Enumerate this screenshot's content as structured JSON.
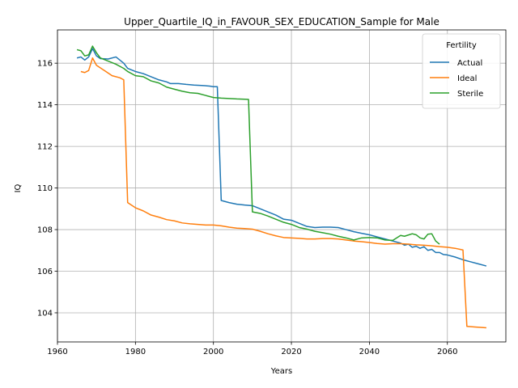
{
  "chart_data": {
    "type": "line",
    "title": "Upper_Quartile_IQ_in_FAVOUR_SEX_EDUCATION_Sample for Male",
    "xlabel": "Years",
    "ylabel": "IQ",
    "xlim": [
      1960,
      2075
    ],
    "ylim": [
      102.6,
      117.6
    ],
    "xticks": [
      1960,
      1980,
      2000,
      2020,
      2040,
      2060
    ],
    "yticks": [
      104,
      106,
      108,
      110,
      112,
      114,
      116
    ],
    "grid": true,
    "legend": {
      "title": "Fertility",
      "position": "top-right"
    },
    "series": [
      {
        "name": "Actual",
        "color": "#1f77b4",
        "points": [
          [
            1965,
            116.25
          ],
          [
            1966,
            116.3
          ],
          [
            1967,
            116.15
          ],
          [
            1968,
            116.3
          ],
          [
            1969,
            116.7
          ],
          [
            1970,
            116.35
          ],
          [
            1971,
            116.22
          ],
          [
            1973,
            116.2
          ],
          [
            1975,
            116.3
          ],
          [
            1977,
            116.0
          ],
          [
            1978,
            115.75
          ],
          [
            1980,
            115.6
          ],
          [
            1982,
            115.5
          ],
          [
            1984,
            115.35
          ],
          [
            1986,
            115.2
          ],
          [
            1988,
            115.1
          ],
          [
            1989,
            115.02
          ],
          [
            1991,
            115.02
          ],
          [
            1993,
            114.98
          ],
          [
            1995,
            114.95
          ],
          [
            1997,
            114.93
          ],
          [
            1999,
            114.9
          ],
          [
            2000,
            114.87
          ],
          [
            2001,
            114.87
          ],
          [
            2002,
            109.4
          ],
          [
            2004,
            109.3
          ],
          [
            2006,
            109.22
          ],
          [
            2008,
            109.18
          ],
          [
            2010,
            109.15
          ],
          [
            2012,
            109.0
          ],
          [
            2014,
            108.85
          ],
          [
            2016,
            108.7
          ],
          [
            2018,
            108.5
          ],
          [
            2020,
            108.45
          ],
          [
            2022,
            108.3
          ],
          [
            2024,
            108.15
          ],
          [
            2026,
            108.1
          ],
          [
            2028,
            108.12
          ],
          [
            2030,
            108.12
          ],
          [
            2032,
            108.1
          ],
          [
            2034,
            108.0
          ],
          [
            2036,
            107.9
          ],
          [
            2038,
            107.82
          ],
          [
            2040,
            107.75
          ],
          [
            2042,
            107.65
          ],
          [
            2044,
            107.55
          ],
          [
            2046,
            107.45
          ],
          [
            2048,
            107.35
          ],
          [
            2049,
            107.25
          ],
          [
            2050,
            107.3
          ],
          [
            2051,
            107.15
          ],
          [
            2052,
            107.2
          ],
          [
            2053,
            107.1
          ],
          [
            2054,
            107.18
          ],
          [
            2055,
            107.0
          ],
          [
            2056,
            107.05
          ],
          [
            2057,
            106.9
          ],
          [
            2058,
            106.9
          ],
          [
            2059,
            106.8
          ],
          [
            2060,
            106.78
          ],
          [
            2062,
            106.68
          ],
          [
            2064,
            106.55
          ],
          [
            2066,
            106.45
          ],
          [
            2068,
            106.35
          ],
          [
            2070,
            106.25
          ]
        ]
      },
      {
        "name": "Ideal",
        "color": "#ff7f0e",
        "points": [
          [
            1966,
            115.6
          ],
          [
            1967,
            115.55
          ],
          [
            1968,
            115.65
          ],
          [
            1969,
            116.25
          ],
          [
            1970,
            115.9
          ],
          [
            1972,
            115.65
          ],
          [
            1974,
            115.4
          ],
          [
            1976,
            115.3
          ],
          [
            1977,
            115.2
          ],
          [
            1978,
            109.3
          ],
          [
            1980,
            109.05
          ],
          [
            1982,
            108.9
          ],
          [
            1984,
            108.7
          ],
          [
            1986,
            108.6
          ],
          [
            1988,
            108.48
          ],
          [
            1990,
            108.42
          ],
          [
            1992,
            108.32
          ],
          [
            1994,
            108.28
          ],
          [
            1996,
            108.25
          ],
          [
            1998,
            108.22
          ],
          [
            2000,
            108.22
          ],
          [
            2002,
            108.18
          ],
          [
            2004,
            108.12
          ],
          [
            2006,
            108.07
          ],
          [
            2008,
            108.05
          ],
          [
            2010,
            108.02
          ],
          [
            2012,
            107.92
          ],
          [
            2014,
            107.8
          ],
          [
            2016,
            107.7
          ],
          [
            2018,
            107.62
          ],
          [
            2020,
            107.6
          ],
          [
            2022,
            107.58
          ],
          [
            2024,
            107.55
          ],
          [
            2026,
            107.55
          ],
          [
            2028,
            107.57
          ],
          [
            2030,
            107.57
          ],
          [
            2032,
            107.55
          ],
          [
            2034,
            107.5
          ],
          [
            2036,
            107.45
          ],
          [
            2038,
            107.42
          ],
          [
            2040,
            107.38
          ],
          [
            2042,
            107.33
          ],
          [
            2044,
            107.3
          ],
          [
            2046,
            107.32
          ],
          [
            2048,
            107.32
          ],
          [
            2050,
            107.3
          ],
          [
            2052,
            107.27
          ],
          [
            2054,
            107.25
          ],
          [
            2056,
            107.22
          ],
          [
            2058,
            107.18
          ],
          [
            2060,
            107.15
          ],
          [
            2062,
            107.1
          ],
          [
            2064,
            107.02
          ],
          [
            2065,
            103.35
          ],
          [
            2067,
            103.32
          ],
          [
            2070,
            103.28
          ]
        ]
      },
      {
        "name": "Sterile",
        "color": "#2ca02c",
        "points": [
          [
            1965,
            116.65
          ],
          [
            1966,
            116.6
          ],
          [
            1967,
            116.35
          ],
          [
            1968,
            116.4
          ],
          [
            1969,
            116.82
          ],
          [
            1970,
            116.5
          ],
          [
            1971,
            116.25
          ],
          [
            1973,
            116.1
          ],
          [
            1975,
            115.95
          ],
          [
            1977,
            115.75
          ],
          [
            1978,
            115.6
          ],
          [
            1980,
            115.4
          ],
          [
            1982,
            115.35
          ],
          [
            1984,
            115.15
          ],
          [
            1986,
            115.05
          ],
          [
            1988,
            114.85
          ],
          [
            1990,
            114.75
          ],
          [
            1992,
            114.65
          ],
          [
            1994,
            114.58
          ],
          [
            1996,
            114.55
          ],
          [
            1998,
            114.45
          ],
          [
            2000,
            114.35
          ],
          [
            2002,
            114.32
          ],
          [
            2004,
            114.3
          ],
          [
            2006,
            114.28
          ],
          [
            2008,
            114.27
          ],
          [
            2009,
            114.26
          ],
          [
            2010,
            108.85
          ],
          [
            2012,
            108.78
          ],
          [
            2014,
            108.65
          ],
          [
            2016,
            108.5
          ],
          [
            2018,
            108.35
          ],
          [
            2020,
            108.25
          ],
          [
            2022,
            108.1
          ],
          [
            2024,
            108.02
          ],
          [
            2026,
            107.92
          ],
          [
            2028,
            107.85
          ],
          [
            2030,
            107.78
          ],
          [
            2032,
            107.68
          ],
          [
            2034,
            107.6
          ],
          [
            2036,
            107.5
          ],
          [
            2038,
            107.6
          ],
          [
            2040,
            107.62
          ],
          [
            2042,
            107.6
          ],
          [
            2044,
            107.5
          ],
          [
            2046,
            107.48
          ],
          [
            2048,
            107.72
          ],
          [
            2049,
            107.68
          ],
          [
            2051,
            107.8
          ],
          [
            2052,
            107.75
          ],
          [
            2053,
            107.6
          ],
          [
            2054,
            107.55
          ],
          [
            2055,
            107.78
          ],
          [
            2056,
            107.8
          ],
          [
            2057,
            107.45
          ],
          [
            2058,
            107.3
          ]
        ]
      }
    ]
  }
}
